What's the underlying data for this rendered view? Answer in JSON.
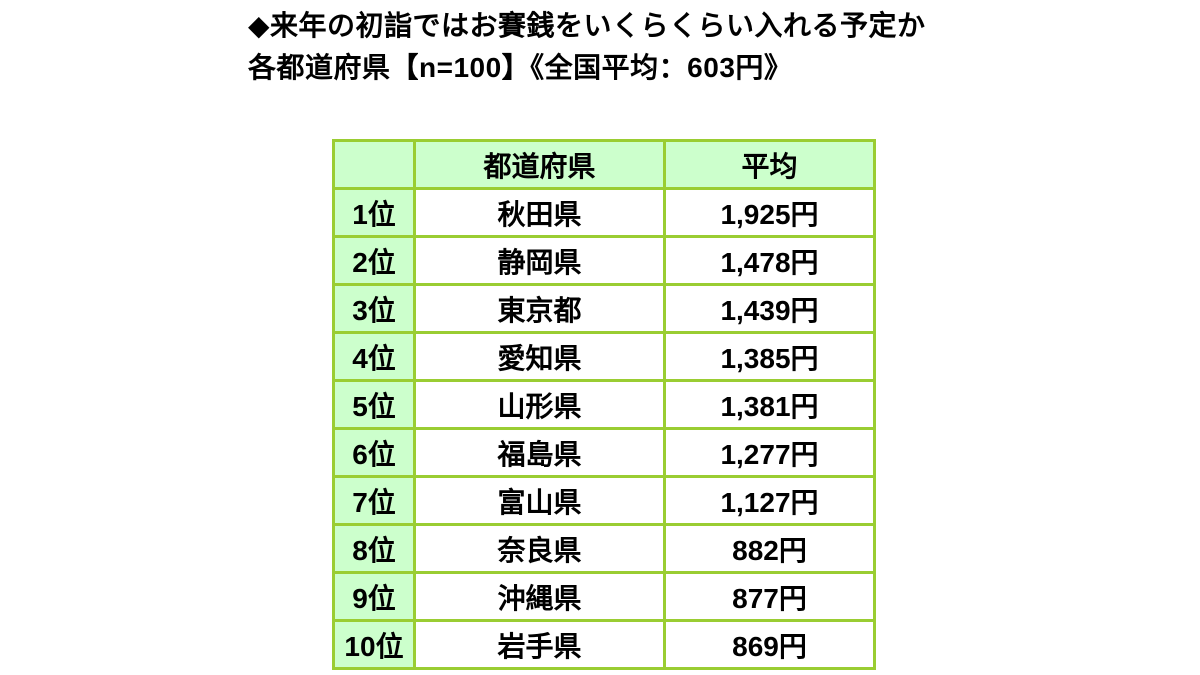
{
  "title": {
    "line1": "◆来年の初詣ではお賽銭をいくらくらい入れる予定か",
    "line2": "各都道府県【n=100】《全国平均：603円》"
  },
  "table": {
    "headers": [
      "",
      "都道府県",
      "平均"
    ],
    "rows": [
      {
        "rank": "1位",
        "prefecture": "秋田県",
        "average": "1,925円"
      },
      {
        "rank": "2位",
        "prefecture": "静岡県",
        "average": "1,478円"
      },
      {
        "rank": "3位",
        "prefecture": "東京都",
        "average": "1,439円"
      },
      {
        "rank": "4位",
        "prefecture": "愛知県",
        "average": "1,385円"
      },
      {
        "rank": "5位",
        "prefecture": "山形県",
        "average": "1,381円"
      },
      {
        "rank": "6位",
        "prefecture": "福島県",
        "average": "1,277円"
      },
      {
        "rank": "7位",
        "prefecture": "富山県",
        "average": "1,127円"
      },
      {
        "rank": "8位",
        "prefecture": "奈良県",
        "average": "882円"
      },
      {
        "rank": "9位",
        "prefecture": "沖縄県",
        "average": "877円"
      },
      {
        "rank": "10位",
        "prefecture": "岩手県",
        "average": "869円"
      }
    ]
  },
  "colors": {
    "border": "#9acd32",
    "cell_fill": "#ccffcc",
    "text": "#000000",
    "background": "#ffffff"
  },
  "chart_data": {
    "type": "table",
    "title": "◆来年の初詣ではお賽銭をいくらくらい入れる予定か 各都道府県【n=100】《全国平均：603円》",
    "columns": [
      "",
      "都道府県",
      "平均"
    ],
    "rows": [
      [
        "1位",
        "秋田県",
        "1,925円"
      ],
      [
        "2位",
        "静岡県",
        "1,478円"
      ],
      [
        "3位",
        "東京都",
        "1,439円"
      ],
      [
        "4位",
        "愛知県",
        "1,385円"
      ],
      [
        "5位",
        "山形県",
        "1,381円"
      ],
      [
        "6位",
        "福島県",
        "1,277円"
      ],
      [
        "7位",
        "富山県",
        "1,127円"
      ],
      [
        "8位",
        "奈良県",
        "882円"
      ],
      [
        "9位",
        "沖縄県",
        "877円"
      ],
      [
        "10位",
        "岩手県",
        "869円"
      ]
    ],
    "values_yen": [
      1925,
      1478,
      1439,
      1385,
      1381,
      1277,
      1127,
      882,
      877,
      869
    ],
    "national_average_yen": 603,
    "sample_size_per_prefecture": 100
  }
}
